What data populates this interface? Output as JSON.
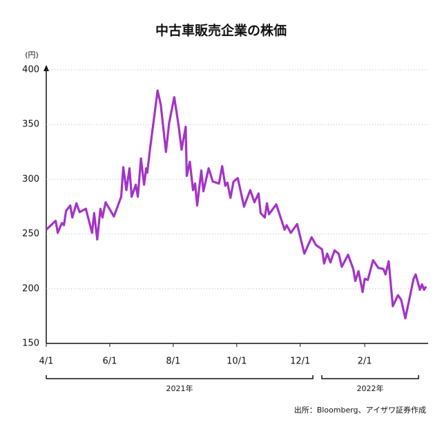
{
  "chart_data": {
    "type": "line",
    "title": "中古車販売企業の株価",
    "y_unit": "(円)",
    "x": [
      "2021-04-01",
      "2021-04-10",
      "2021-04-12",
      "2021-04-16",
      "2021-04-18",
      "2021-04-20",
      "2021-04-24",
      "2021-04-26",
      "2021-04-30",
      "2021-05-03",
      "2021-05-09",
      "2021-05-15",
      "2021-05-17",
      "2021-05-20",
      "2021-05-23",
      "2021-05-25",
      "2021-05-28",
      "2021-06-05",
      "2021-06-12",
      "2021-06-14",
      "2021-06-17",
      "2021-06-20",
      "2021-06-22",
      "2021-06-26",
      "2021-06-28",
      "2021-07-01",
      "2021-07-04",
      "2021-07-06",
      "2021-07-07",
      "2021-07-10",
      "2021-07-17",
      "2021-07-20",
      "2021-07-25",
      "2021-07-28",
      "2021-08-02",
      "2021-08-06",
      "2021-08-09",
      "2021-08-13",
      "2021-08-14",
      "2021-08-17",
      "2021-08-20",
      "2021-08-22",
      "2021-08-24",
      "2021-08-28",
      "2021-08-30",
      "2021-09-04",
      "2021-09-08",
      "2021-09-14",
      "2021-09-17",
      "2021-09-20",
      "2021-09-22",
      "2021-09-25",
      "2021-09-28",
      "2021-10-02",
      "2021-10-08",
      "2021-10-14",
      "2021-10-18",
      "2021-10-22",
      "2021-10-24",
      "2021-10-28",
      "2021-10-30",
      "2021-11-01",
      "2021-11-08",
      "2021-11-16",
      "2021-11-18",
      "2021-11-22",
      "2021-11-28",
      "2021-12-05",
      "2021-12-12",
      "2021-12-16",
      "2021-12-22",
      "2021-12-24",
      "2021-12-27",
      "2021-12-30",
      "2022-01-03",
      "2022-01-07",
      "2022-01-10",
      "2022-01-16",
      "2022-01-21",
      "2022-01-23",
      "2022-01-26",
      "2022-01-30",
      "2022-02-01",
      "2022-02-04",
      "2022-02-09",
      "2022-02-14",
      "2022-02-19",
      "2022-02-21",
      "2022-02-24",
      "2022-02-28",
      "2022-03-05",
      "2022-03-08",
      "2022-03-12",
      "2022-03-16",
      "2022-03-20",
      "2022-03-22",
      "2022-03-26",
      "2022-03-28",
      "2022-03-30",
      "2022-04-01"
    ],
    "series": [
      {
        "name": "株価",
        "color": "#a333c8",
        "values": [
          254,
          262,
          251,
          260,
          258,
          271,
          276,
          265,
          278,
          270,
          273,
          251,
          269,
          245,
          273,
          265,
          279,
          266,
          284,
          311,
          290,
          310,
          284,
          295,
          284,
          319,
          295,
          310,
          306,
          330,
          381,
          368,
          325,
          351,
          375,
          350,
          327,
          348,
          303,
          316,
          290,
          296,
          276,
          308,
          289,
          310,
          298,
          296,
          312,
          294,
          297,
          283,
          298,
          301,
          275,
          290,
          279,
          287,
          269,
          265,
          278,
          268,
          277,
          254,
          258,
          251,
          259,
          232,
          247,
          240,
          236,
          223,
          232,
          224,
          235,
          232,
          220,
          231,
          218,
          207,
          216,
          197,
          209,
          208,
          226,
          219,
          218,
          213,
          225,
          184,
          194,
          190,
          173,
          191,
          209,
          213,
          199,
          204,
          199,
          202
        ]
      }
    ],
    "xlim": [
      "2021-04-01",
      "2022-04-01"
    ],
    "xticks": [
      {
        "value": "2021-04-01",
        "label": "4/1"
      },
      {
        "value": "2021-06-01",
        "label": "6/1"
      },
      {
        "value": "2021-08-01",
        "label": "8/1"
      },
      {
        "value": "2021-10-01",
        "label": "10/1"
      },
      {
        "value": "2021-12-01",
        "label": "12/1"
      },
      {
        "value": "2022-02-01",
        "label": "2/1"
      }
    ],
    "ylim": [
      150,
      400
    ],
    "yticks": [
      150,
      200,
      250,
      300,
      350,
      400
    ],
    "grid": true,
    "years": [
      "2021年",
      "2022年"
    ],
    "source": "出所：Bloomberg、アイザワ証券作成"
  }
}
